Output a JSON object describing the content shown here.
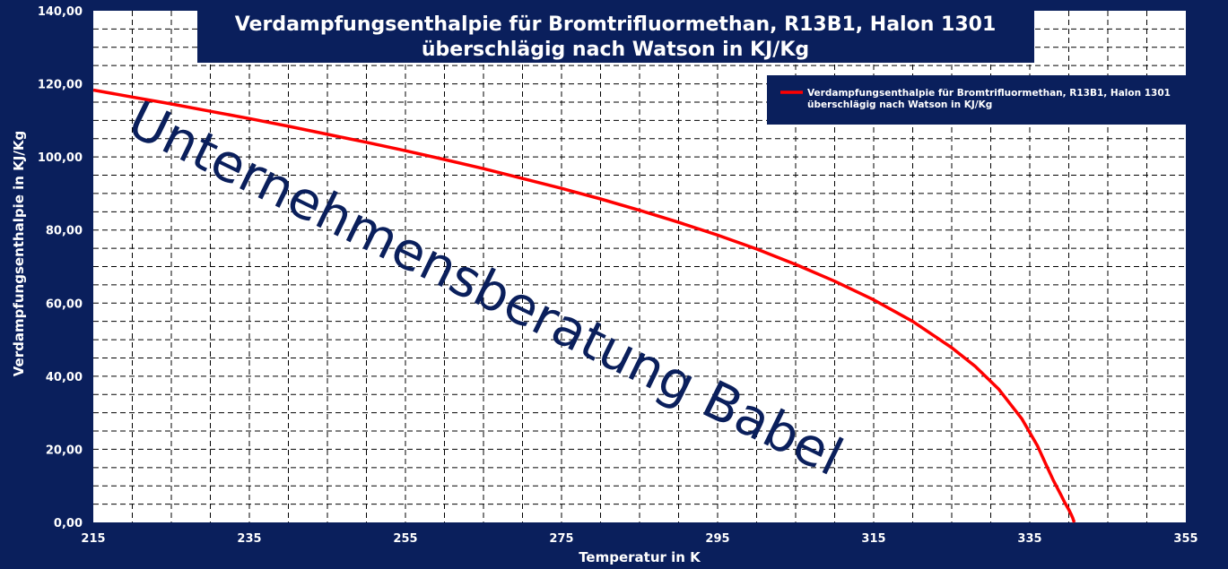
{
  "chart_data": {
    "type": "line",
    "title": [
      "Verdampfungsenthalpie für Bromtrifluormethan, R13B1, Halon 1301",
      "überschlägig nach Watson in KJ/Kg"
    ],
    "xlabel": "Temperatur in K",
    "ylabel": "Verdampfungsenthalpie  in KJ/Kg",
    "xlim": [
      215,
      355
    ],
    "ylim": [
      0,
      140
    ],
    "x_ticks": [
      "215",
      "235",
      "255",
      "275",
      "295",
      "315",
      "335",
      "355"
    ],
    "y_ticks": [
      "0,00",
      "20,00",
      "40,00",
      "60,00",
      "80,00",
      "100,00",
      "120,00",
      "140,00"
    ],
    "grid": true,
    "legend_position": "top-right",
    "series": [
      {
        "name": "Verdampfungsenthalpie für Bromtrifluormethan, R13B1, Halon 1301 überschlägig nach Watson in KJ/Kg",
        "color": "#ff0000",
        "x": [
          215,
          220,
          225,
          230,
          235,
          240,
          245,
          250,
          255,
          260,
          265,
          270,
          275,
          280,
          285,
          290,
          295,
          300,
          305,
          310,
          315,
          320,
          325,
          328,
          331,
          334,
          336,
          337,
          338,
          339,
          339.5,
          340,
          340.3,
          340.5,
          340.7
        ],
        "y": [
          118.3,
          116.4,
          114.5,
          112.5,
          110.5,
          108.4,
          106.2,
          104.0,
          101.7,
          99.3,
          96.8,
          94.1,
          91.4,
          88.5,
          85.4,
          82.1,
          78.6,
          74.8,
          70.6,
          66.0,
          60.9,
          55.0,
          47.8,
          42.7,
          36.5,
          28.3,
          20.9,
          16.2,
          11.6,
          7.5,
          5.4,
          3.5,
          2.2,
          1.2,
          0.0
        ]
      }
    ]
  },
  "watermark": "Unternehmensberatung Babel"
}
